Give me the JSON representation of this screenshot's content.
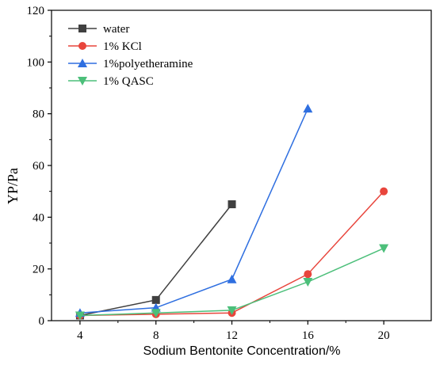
{
  "chart_data": {
    "type": "line",
    "xlabel": "Sodium Bentonite Concentration/%",
    "ylabel": "YP/Pa",
    "xlim": [
      2.5,
      22.5
    ],
    "ylim": [
      0,
      120
    ],
    "xticks": [
      4,
      8,
      12,
      16,
      20
    ],
    "yticks": [
      0,
      20,
      40,
      60,
      80,
      100,
      120
    ],
    "legend_position": "top-left",
    "series": [
      {
        "name": "water",
        "color": "#404040",
        "marker": "square",
        "points": [
          [
            4,
            2
          ],
          [
            8,
            8
          ],
          [
            12,
            45
          ]
        ]
      },
      {
        "name": "1% KCl",
        "color": "#e8453c",
        "marker": "circle",
        "points": [
          [
            4,
            2
          ],
          [
            8,
            2.5
          ],
          [
            12,
            3
          ],
          [
            16,
            18
          ],
          [
            20,
            50
          ]
        ]
      },
      {
        "name": "1%polyetheramine",
        "color": "#2f6fe0",
        "marker": "triangle-up",
        "points": [
          [
            4,
            3
          ],
          [
            8,
            5
          ],
          [
            12,
            16
          ],
          [
            16,
            82
          ]
        ]
      },
      {
        "name": "1% QASC",
        "color": "#4cbf7a",
        "marker": "triangle-down",
        "points": [
          [
            4,
            2
          ],
          [
            8,
            3
          ],
          [
            12,
            4
          ],
          [
            16,
            15
          ],
          [
            20,
            28
          ]
        ]
      }
    ]
  }
}
